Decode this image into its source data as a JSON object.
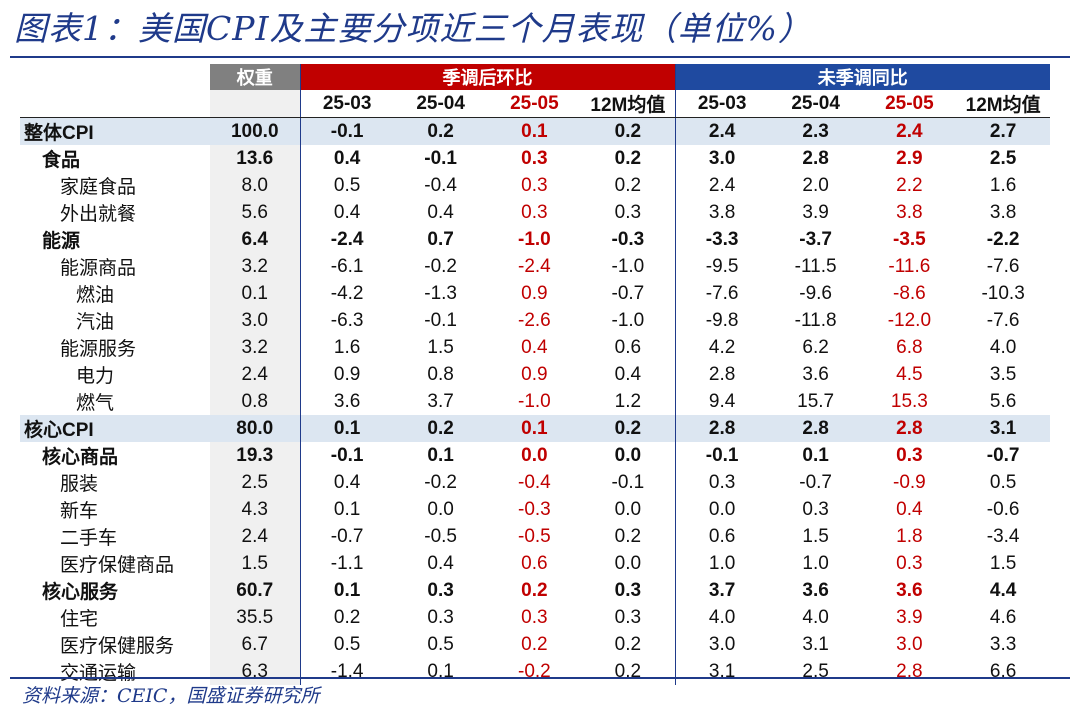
{
  "title": "图表1：美国CPI及主要分项近三个月表现（单位%）",
  "source": "资料来源：CEIC，国盛证券研究所",
  "header": {
    "weight": "权重",
    "sa_mom": "季调后环比",
    "nsa_yoy": "未季调同比",
    "periods": [
      "25-03",
      "25-04",
      "25-05",
      "12M均值"
    ]
  },
  "rows": [
    {
      "name": "整体CPI",
      "weight": "100.0",
      "sa": [
        "-0.1",
        "0.2",
        "0.1",
        "0.2"
      ],
      "yoy": [
        "2.4",
        "2.3",
        "2.4",
        "2.7"
      ]
    },
    {
      "name": "食品",
      "weight": "13.6",
      "sa": [
        "0.4",
        "-0.1",
        "0.3",
        "0.2"
      ],
      "yoy": [
        "3.0",
        "2.8",
        "2.9",
        "2.5"
      ]
    },
    {
      "name": "家庭食品",
      "weight": "8.0",
      "sa": [
        "0.5",
        "-0.4",
        "0.3",
        "0.2"
      ],
      "yoy": [
        "2.4",
        "2.0",
        "2.2",
        "1.6"
      ]
    },
    {
      "name": "外出就餐",
      "weight": "5.6",
      "sa": [
        "0.4",
        "0.4",
        "0.3",
        "0.3"
      ],
      "yoy": [
        "3.8",
        "3.9",
        "3.8",
        "3.8"
      ]
    },
    {
      "name": "能源",
      "weight": "6.4",
      "sa": [
        "-2.4",
        "0.7",
        "-1.0",
        "-0.3"
      ],
      "yoy": [
        "-3.3",
        "-3.7",
        "-3.5",
        "-2.2"
      ]
    },
    {
      "name": "能源商品",
      "weight": "3.2",
      "sa": [
        "-6.1",
        "-0.2",
        "-2.4",
        "-1.0"
      ],
      "yoy": [
        "-9.5",
        "-11.5",
        "-11.6",
        "-7.6"
      ]
    },
    {
      "name": "燃油",
      "weight": "0.1",
      "sa": [
        "-4.2",
        "-1.3",
        "0.9",
        "-0.7"
      ],
      "yoy": [
        "-7.6",
        "-9.6",
        "-8.6",
        "-10.3"
      ]
    },
    {
      "name": "汽油",
      "weight": "3.0",
      "sa": [
        "-6.3",
        "-0.1",
        "-2.6",
        "-1.0"
      ],
      "yoy": [
        "-9.8",
        "-11.8",
        "-12.0",
        "-7.6"
      ]
    },
    {
      "name": "能源服务",
      "weight": "3.2",
      "sa": [
        "1.6",
        "1.5",
        "0.4",
        "0.6"
      ],
      "yoy": [
        "4.2",
        "6.2",
        "6.8",
        "4.0"
      ]
    },
    {
      "name": "电力",
      "weight": "2.4",
      "sa": [
        "0.9",
        "0.8",
        "0.9",
        "0.4"
      ],
      "yoy": [
        "2.8",
        "3.6",
        "4.5",
        "3.5"
      ]
    },
    {
      "name": "燃气",
      "weight": "0.8",
      "sa": [
        "3.6",
        "3.7",
        "-1.0",
        "1.2"
      ],
      "yoy": [
        "9.4",
        "15.7",
        "15.3",
        "5.6"
      ]
    },
    {
      "name": "核心CPI",
      "weight": "80.0",
      "sa": [
        "0.1",
        "0.2",
        "0.1",
        "0.2"
      ],
      "yoy": [
        "2.8",
        "2.8",
        "2.8",
        "3.1"
      ]
    },
    {
      "name": "核心商品",
      "weight": "19.3",
      "sa": [
        "-0.1",
        "0.1",
        "0.0",
        "0.0"
      ],
      "yoy": [
        "-0.1",
        "0.1",
        "0.3",
        "-0.7"
      ]
    },
    {
      "name": "服装",
      "weight": "2.5",
      "sa": [
        "0.4",
        "-0.2",
        "-0.4",
        "-0.1"
      ],
      "yoy": [
        "0.3",
        "-0.7",
        "-0.9",
        "0.5"
      ]
    },
    {
      "name": "新车",
      "weight": "4.3",
      "sa": [
        "0.1",
        "0.0",
        "-0.3",
        "0.0"
      ],
      "yoy": [
        "0.0",
        "0.3",
        "0.4",
        "-0.6"
      ]
    },
    {
      "name": "二手车",
      "weight": "2.4",
      "sa": [
        "-0.7",
        "-0.5",
        "-0.5",
        "0.2"
      ],
      "yoy": [
        "0.6",
        "1.5",
        "1.8",
        "-3.4"
      ]
    },
    {
      "name": "医疗保健商品",
      "weight": "1.5",
      "sa": [
        "-1.1",
        "0.4",
        "0.6",
        "0.0"
      ],
      "yoy": [
        "1.0",
        "1.0",
        "0.3",
        "1.5"
      ]
    },
    {
      "name": "核心服务",
      "weight": "60.7",
      "sa": [
        "0.1",
        "0.3",
        "0.2",
        "0.3"
      ],
      "yoy": [
        "3.7",
        "3.6",
        "3.6",
        "4.4"
      ]
    },
    {
      "name": "住宅",
      "weight": "35.5",
      "sa": [
        "0.2",
        "0.3",
        "0.3",
        "0.3"
      ],
      "yoy": [
        "4.0",
        "4.0",
        "3.9",
        "4.6"
      ]
    },
    {
      "name": "医疗保健服务",
      "weight": "6.7",
      "sa": [
        "0.5",
        "0.5",
        "0.2",
        "0.2"
      ],
      "yoy": [
        "3.0",
        "3.1",
        "3.0",
        "3.3"
      ]
    },
    {
      "name": "交通运输",
      "weight": "6.3",
      "sa": [
        "-1.4",
        "0.1",
        "-0.2",
        "0.2"
      ],
      "yoy": [
        "3.1",
        "2.5",
        "2.8",
        "6.6"
      ]
    }
  ],
  "colors": {
    "title": "#1f3a8a",
    "weight_header": "#808080",
    "sa_header": "#c00000",
    "yoy_header": "#1f4aa0",
    "highlight_row": "#dce6f1",
    "latest_month_text": "#c00000"
  }
}
